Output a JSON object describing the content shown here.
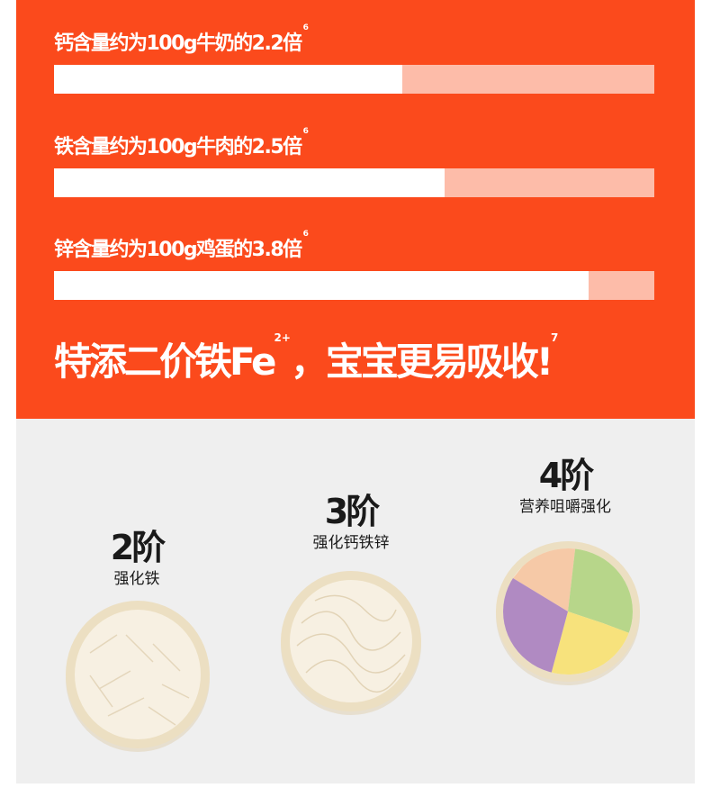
{
  "comparisons": [
    {
      "label": "钙含量约为100g牛奶的2.2倍",
      "note": "6",
      "fill_fraction": 0.58
    },
    {
      "label": "铁含量约为100g牛肉的2.5倍",
      "note": "6",
      "fill_fraction": 0.65
    },
    {
      "label": "锌含量约为100g鸡蛋的3.8倍",
      "note": "6",
      "fill_fraction": 0.89
    }
  ],
  "headline": {
    "pre": "特添二价铁Fe",
    "sup": "2+",
    "post": "，宝宝更易吸收!",
    "note": "7"
  },
  "stages": [
    {
      "title": "2阶",
      "subtitle": "强化铁"
    },
    {
      "title": "3阶",
      "subtitle": "强化钙铁锌"
    },
    {
      "title": "4阶",
      "subtitle": "营养咀嚼强化"
    }
  ],
  "colors": {
    "brand_orange": "#fb4a1c",
    "bar_track": "#fdbca9",
    "bar_fill": "#ffffff",
    "background_gray": "#efefef"
  }
}
